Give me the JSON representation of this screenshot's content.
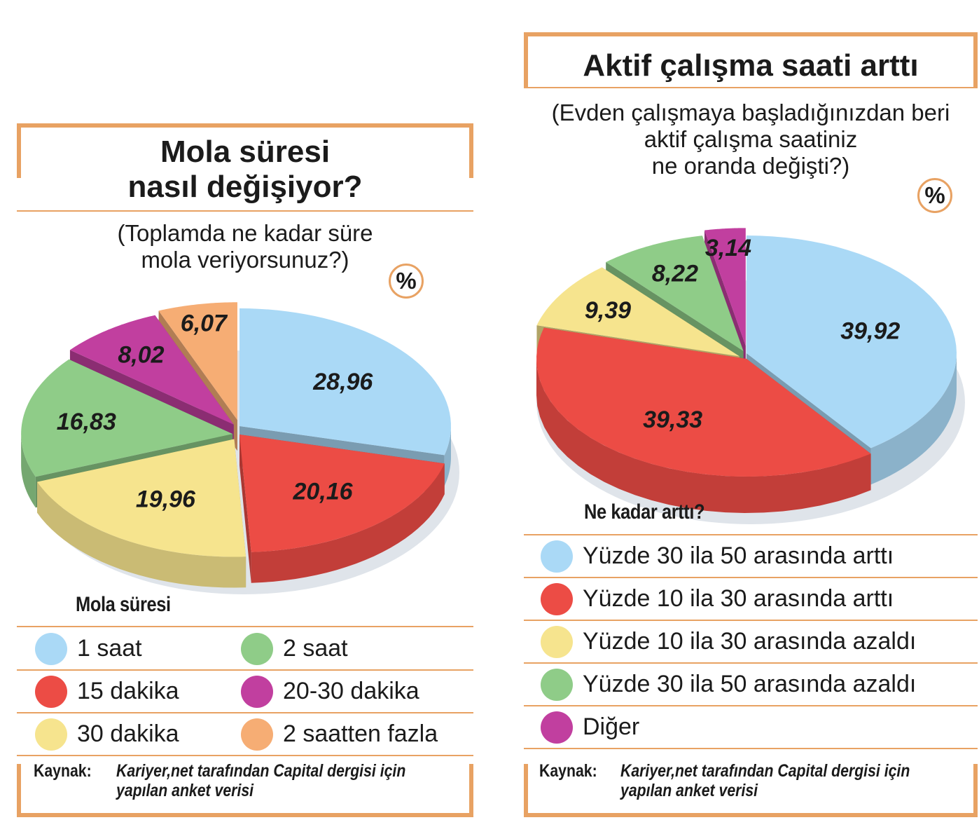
{
  "left": {
    "title_line1": "Mola süresi",
    "title_line2": "nasıl değişiyor?",
    "subtitle_line1": "(Toplamda ne kadar süre",
    "subtitle_line2": "mola veriyorsunuz?)",
    "percent_badge": "%",
    "legend_title": "Mola süresi",
    "legend": [
      {
        "label": "1 saat",
        "color": "#aad9f6"
      },
      {
        "label": "2 saat",
        "color": "#8fcc88"
      },
      {
        "label": "15 dakika",
        "color": "#ec4c45"
      },
      {
        "label": "20-30 dakika",
        "color": "#c13f9f"
      },
      {
        "label": "30 dakika",
        "color": "#f6e48e"
      },
      {
        "label": "2 saatten fazla",
        "color": "#f6ad74"
      }
    ],
    "source_key": "Kaynak:",
    "source_line1": "Kariyer,net tarafından Capital dergisi için",
    "source_line2": "yapılan anket verisi"
  },
  "right": {
    "title": "Aktif çalışma saati arttı",
    "subtitle_line1": "(Evden çalışmaya başladığınızdan beri",
    "subtitle_line2": "aktif çalışma saatiniz",
    "subtitle_line3": "ne oranda değişti?)",
    "percent_badge": "%",
    "legend_title": "Ne kadar arttı?",
    "legend": [
      {
        "label": "Yüzde 30 ila 50 arasında arttı",
        "color": "#aad9f6"
      },
      {
        "label": "Yüzde 10 ila 30 arasında arttı",
        "color": "#ec4c45"
      },
      {
        "label": "Yüzde 10 ila 30 arasında azaldı",
        "color": "#f6e48e"
      },
      {
        "label": "Yüzde 30 ila 50 arasında azaldı",
        "color": "#8fcc88"
      },
      {
        "label": "Diğer",
        "color": "#c13f9f"
      }
    ],
    "source_key": "Kaynak:",
    "source_line1": "Kariyer,net tarafından Capital dergisi için",
    "source_line2": "yapılan anket verisi"
  },
  "chart_data": [
    {
      "type": "pie",
      "title": "Mola süresi nasıl değişiyor?",
      "subtitle": "(Toplamda ne kadar süre mola veriyorsunuz?)",
      "unit": "%",
      "legend_title": "Mola süresi",
      "slices": [
        {
          "label": "1 saat",
          "value": 28.96,
          "value_label": "28,96",
          "color": "#aad9f6"
        },
        {
          "label": "15 dakika",
          "value": 20.16,
          "value_label": "20,16",
          "color": "#ec4c45"
        },
        {
          "label": "30 dakika",
          "value": 19.96,
          "value_label": "19,96",
          "color": "#f6e48e"
        },
        {
          "label": "2 saat",
          "value": 16.83,
          "value_label": "16,83",
          "color": "#8fcc88"
        },
        {
          "label": "20-30 dakika",
          "value": 8.02,
          "value_label": "8,02",
          "color": "#c13f9f"
        },
        {
          "label": "2 saatten fazla",
          "value": 6.07,
          "value_label": "6,07",
          "color": "#f6ad74"
        }
      ]
    },
    {
      "type": "pie",
      "title": "Aktif çalışma saati arttı",
      "subtitle": "(Evden çalışmaya başladığınızdan beri aktif çalışma saatiniz ne oranda değişti?)",
      "unit": "%",
      "legend_title": "Ne kadar arttı?",
      "slices": [
        {
          "label": "Yüzde 30 ila 50 arasında arttı",
          "value": 39.92,
          "value_label": "39,92",
          "color": "#aad9f6"
        },
        {
          "label": "Yüzde 10 ila 30 arasında arttı",
          "value": 39.33,
          "value_label": "39,33",
          "color": "#ec4c45"
        },
        {
          "label": "Yüzde 10 ila 30 arasında azaldı",
          "value": 9.39,
          "value_label": "9,39",
          "color": "#f6e48e"
        },
        {
          "label": "Yüzde 30 ila 50 arasında azaldı",
          "value": 8.22,
          "value_label": "8,22",
          "color": "#8fcc88"
        },
        {
          "label": "Diğer",
          "value": 3.14,
          "value_label": "3,14",
          "color": "#c13f9f"
        }
      ]
    }
  ]
}
